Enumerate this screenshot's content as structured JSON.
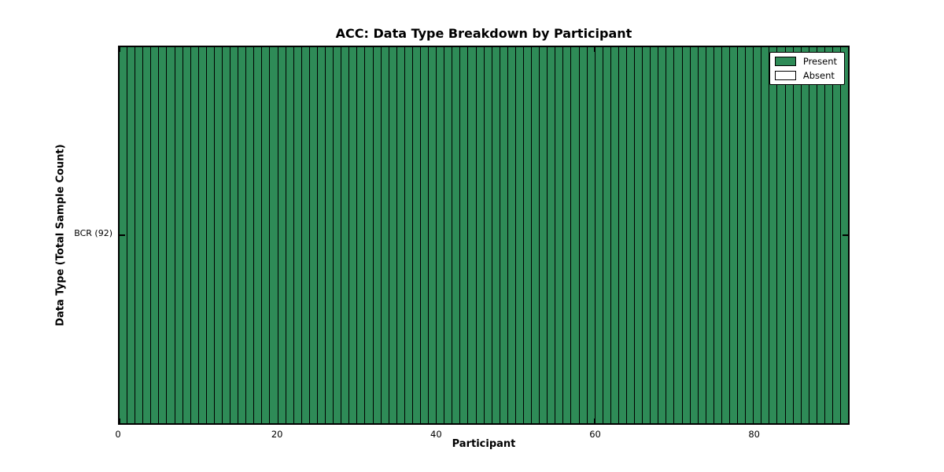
{
  "chart_data": {
    "type": "heatmap",
    "title": "ACC: Data Type Breakdown by Participant",
    "xlabel": "Participant",
    "ylabel": "Data Type (Total Sample Count)",
    "xlim": [
      0,
      92
    ],
    "xticks": [
      0,
      20,
      40,
      60,
      80
    ],
    "n_participants": 92,
    "rows": [
      {
        "label": "BCR (92)",
        "data_type": "BCR",
        "total_sample_count": 92,
        "values": [
          1,
          1,
          1,
          1,
          1,
          1,
          1,
          1,
          1,
          1,
          1,
          1,
          1,
          1,
          1,
          1,
          1,
          1,
          1,
          1,
          1,
          1,
          1,
          1,
          1,
          1,
          1,
          1,
          1,
          1,
          1,
          1,
          1,
          1,
          1,
          1,
          1,
          1,
          1,
          1,
          1,
          1,
          1,
          1,
          1,
          1,
          1,
          1,
          1,
          1,
          1,
          1,
          1,
          1,
          1,
          1,
          1,
          1,
          1,
          1,
          1,
          1,
          1,
          1,
          1,
          1,
          1,
          1,
          1,
          1,
          1,
          1,
          1,
          1,
          1,
          1,
          1,
          1,
          1,
          1,
          1,
          1,
          1,
          1,
          1,
          1,
          1,
          1,
          1,
          1,
          1,
          1
        ]
      }
    ],
    "legend": {
      "position": "upper right",
      "entries": [
        {
          "label": "Present",
          "color": "#2e8b57"
        },
        {
          "label": "Absent",
          "color": "#ffffff"
        }
      ]
    },
    "colors": {
      "present": "#2e8b57",
      "absent": "#ffffff",
      "edge": "#000000"
    },
    "grid": false
  }
}
